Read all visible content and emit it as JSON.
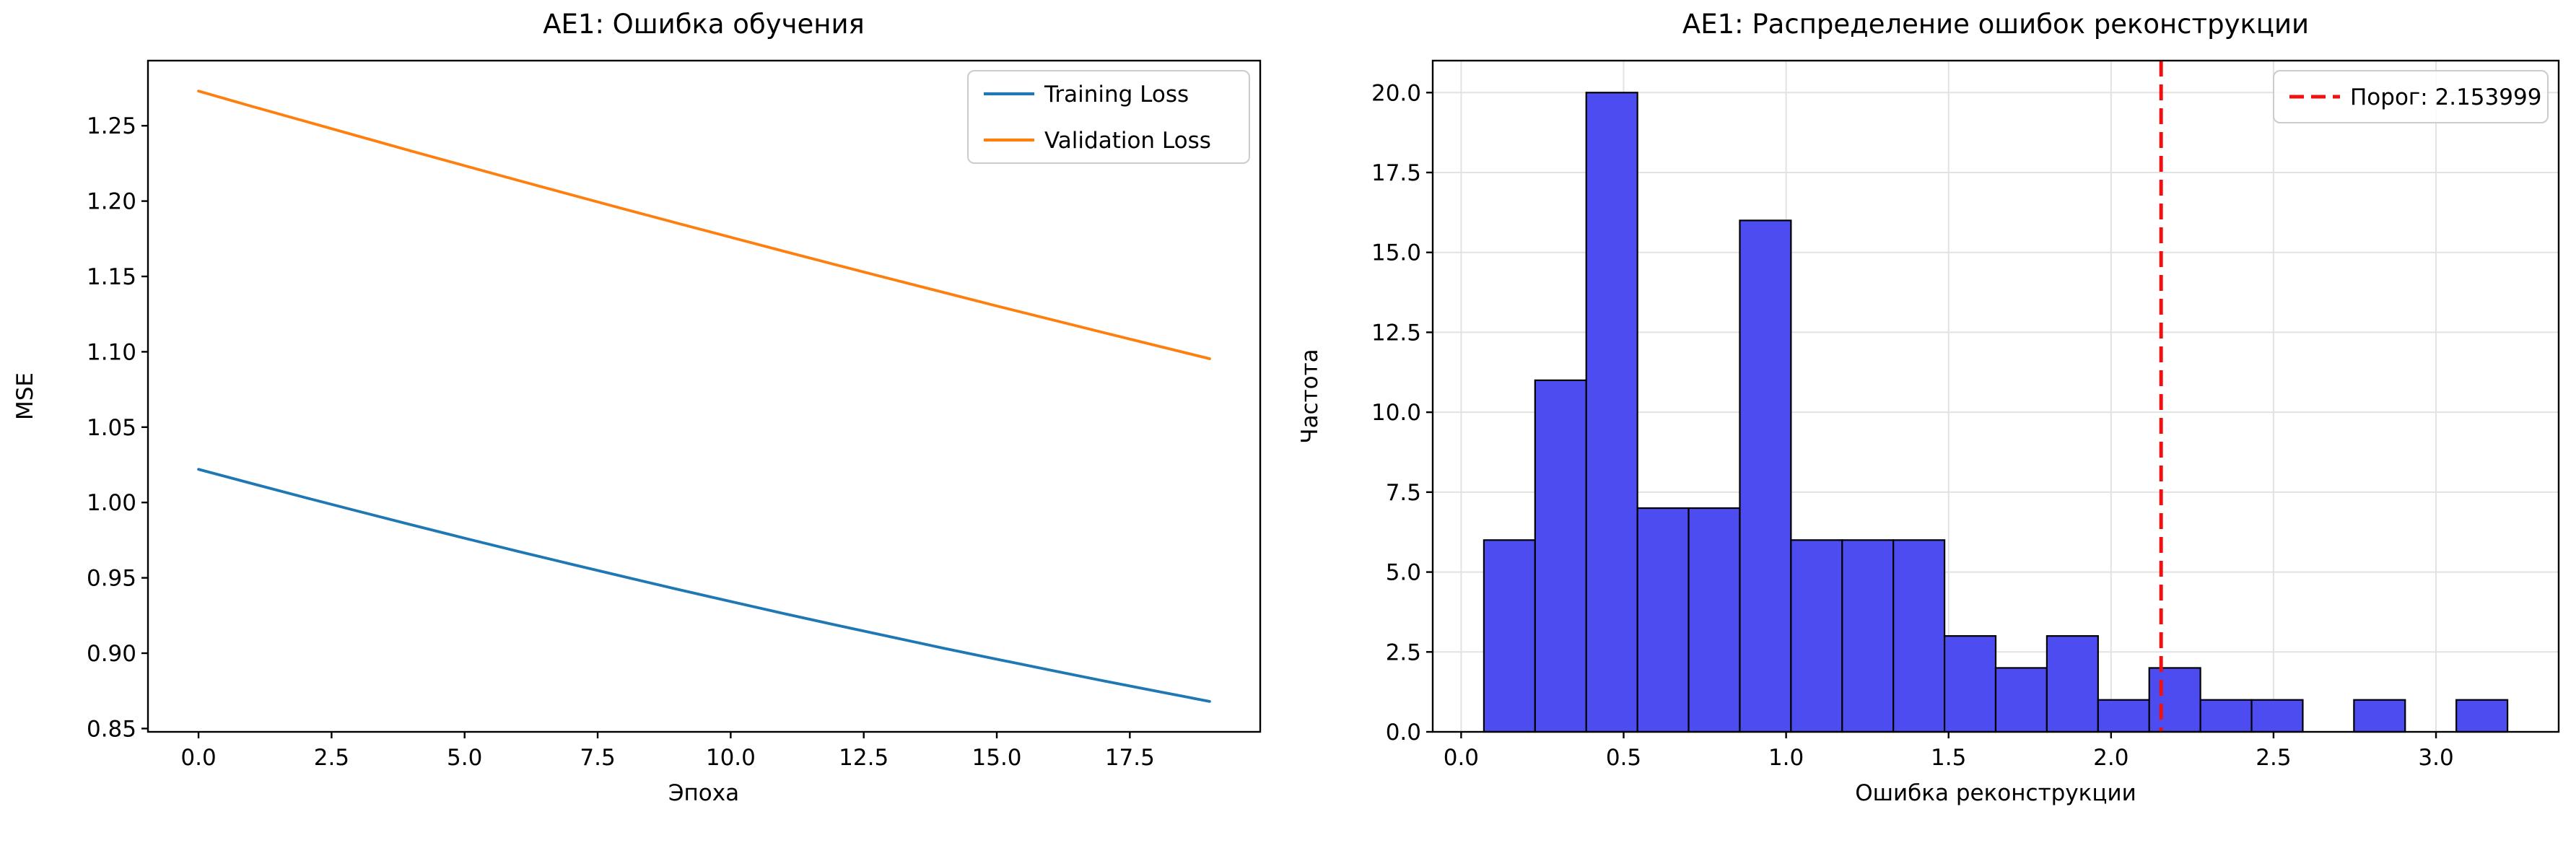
{
  "figure": {
    "background": "#ffffff",
    "spine_color": "#000000",
    "grid_color": "#e2e2e2"
  },
  "chart_data": [
    {
      "id": "train-loss",
      "type": "line",
      "title": "AE1: Ошибка обучения",
      "xlabel": "Эпоха",
      "ylabel": "MSE",
      "xlim": [
        -0.95,
        19.95
      ],
      "ylim": [
        0.8478,
        1.2932
      ],
      "grid": false,
      "xtick_vals": [
        0,
        2.5,
        5,
        7.5,
        10,
        12.5,
        15,
        17.5
      ],
      "xtick_labels": [
        "0.0",
        "2.5",
        "5.0",
        "7.5",
        "10.0",
        "12.5",
        "15.0",
        "17.5"
      ],
      "ytick_vals": [
        0.85,
        0.9,
        0.95,
        1.0,
        1.05,
        1.1,
        1.15,
        1.2,
        1.25
      ],
      "ytick_labels": [
        "0.85",
        "0.90",
        "0.95",
        "1.00",
        "1.05",
        "1.10",
        "1.15",
        "1.20",
        "1.25"
      ],
      "x": [
        0,
        1,
        2,
        3,
        4,
        5,
        6,
        7,
        8,
        9,
        10,
        11,
        12,
        13,
        14,
        15,
        16,
        17,
        18,
        19
      ],
      "series": [
        {
          "name": "Training Loss",
          "color": "#1f77b4",
          "values": [
            1.022,
            1.0126,
            1.0033,
            0.9942,
            0.9852,
            0.9763,
            0.9676,
            0.9591,
            0.9507,
            0.9424,
            0.9343,
            0.9263,
            0.9185,
            0.9109,
            0.9033,
            0.896,
            0.8888,
            0.8817,
            0.8748,
            0.868
          ]
        },
        {
          "name": "Validation Loss",
          "color": "#ff7f0e",
          "values": [
            1.273,
            1.2629,
            1.253,
            1.2431,
            1.2332,
            1.2235,
            1.2138,
            1.2042,
            1.1947,
            1.1853,
            1.176,
            1.1667,
            1.1575,
            1.1484,
            1.1394,
            1.1304,
            1.1216,
            1.1128,
            1.1041,
            1.0954
          ]
        }
      ],
      "legend": {
        "position": "upper-right",
        "entries": [
          {
            "label": "Training Loss",
            "color": "#1f77b4",
            "dashed": false
          },
          {
            "label": "Validation Loss",
            "color": "#ff7f0e",
            "dashed": false
          }
        ]
      }
    },
    {
      "id": "recon-error-hist",
      "type": "bar",
      "title": "AE1: Распределение ошибок реконструкции",
      "xlabel": "Ошибка реконструкции",
      "ylabel": "Частота",
      "xlim": [
        -0.0875,
        3.3775
      ],
      "ylim": [
        0,
        21
      ],
      "grid": true,
      "xtick_vals": [
        0,
        0.5,
        1,
        1.5,
        2,
        2.5,
        3
      ],
      "xtick_labels": [
        "0.0",
        "0.5",
        "1.0",
        "1.5",
        "2.0",
        "2.5",
        "3.0"
      ],
      "ytick_vals": [
        0,
        2.5,
        5,
        7.5,
        10,
        12.5,
        15,
        17.5,
        20
      ],
      "ytick_labels": [
        "0.0",
        "2.5",
        "5.0",
        "7.5",
        "10.0",
        "12.5",
        "15.0",
        "17.5",
        "20.0"
      ],
      "bin_start": 0.07,
      "bin_width": 0.1575,
      "counts": [
        6,
        11,
        20,
        7,
        7,
        16,
        6,
        6,
        6,
        3,
        2,
        3,
        1,
        2,
        1,
        1,
        0,
        1,
        0,
        1
      ],
      "bar_color": "#4c4cf0",
      "bar_edge": "#000000",
      "threshold": {
        "value": 2.153999,
        "color": "#f01010",
        "label": "Порог: 2.153999"
      },
      "legend": {
        "position": "upper-right",
        "entries": [
          {
            "label": "Порог: 2.153999",
            "color": "#f01010",
            "dashed": true
          }
        ]
      }
    }
  ]
}
